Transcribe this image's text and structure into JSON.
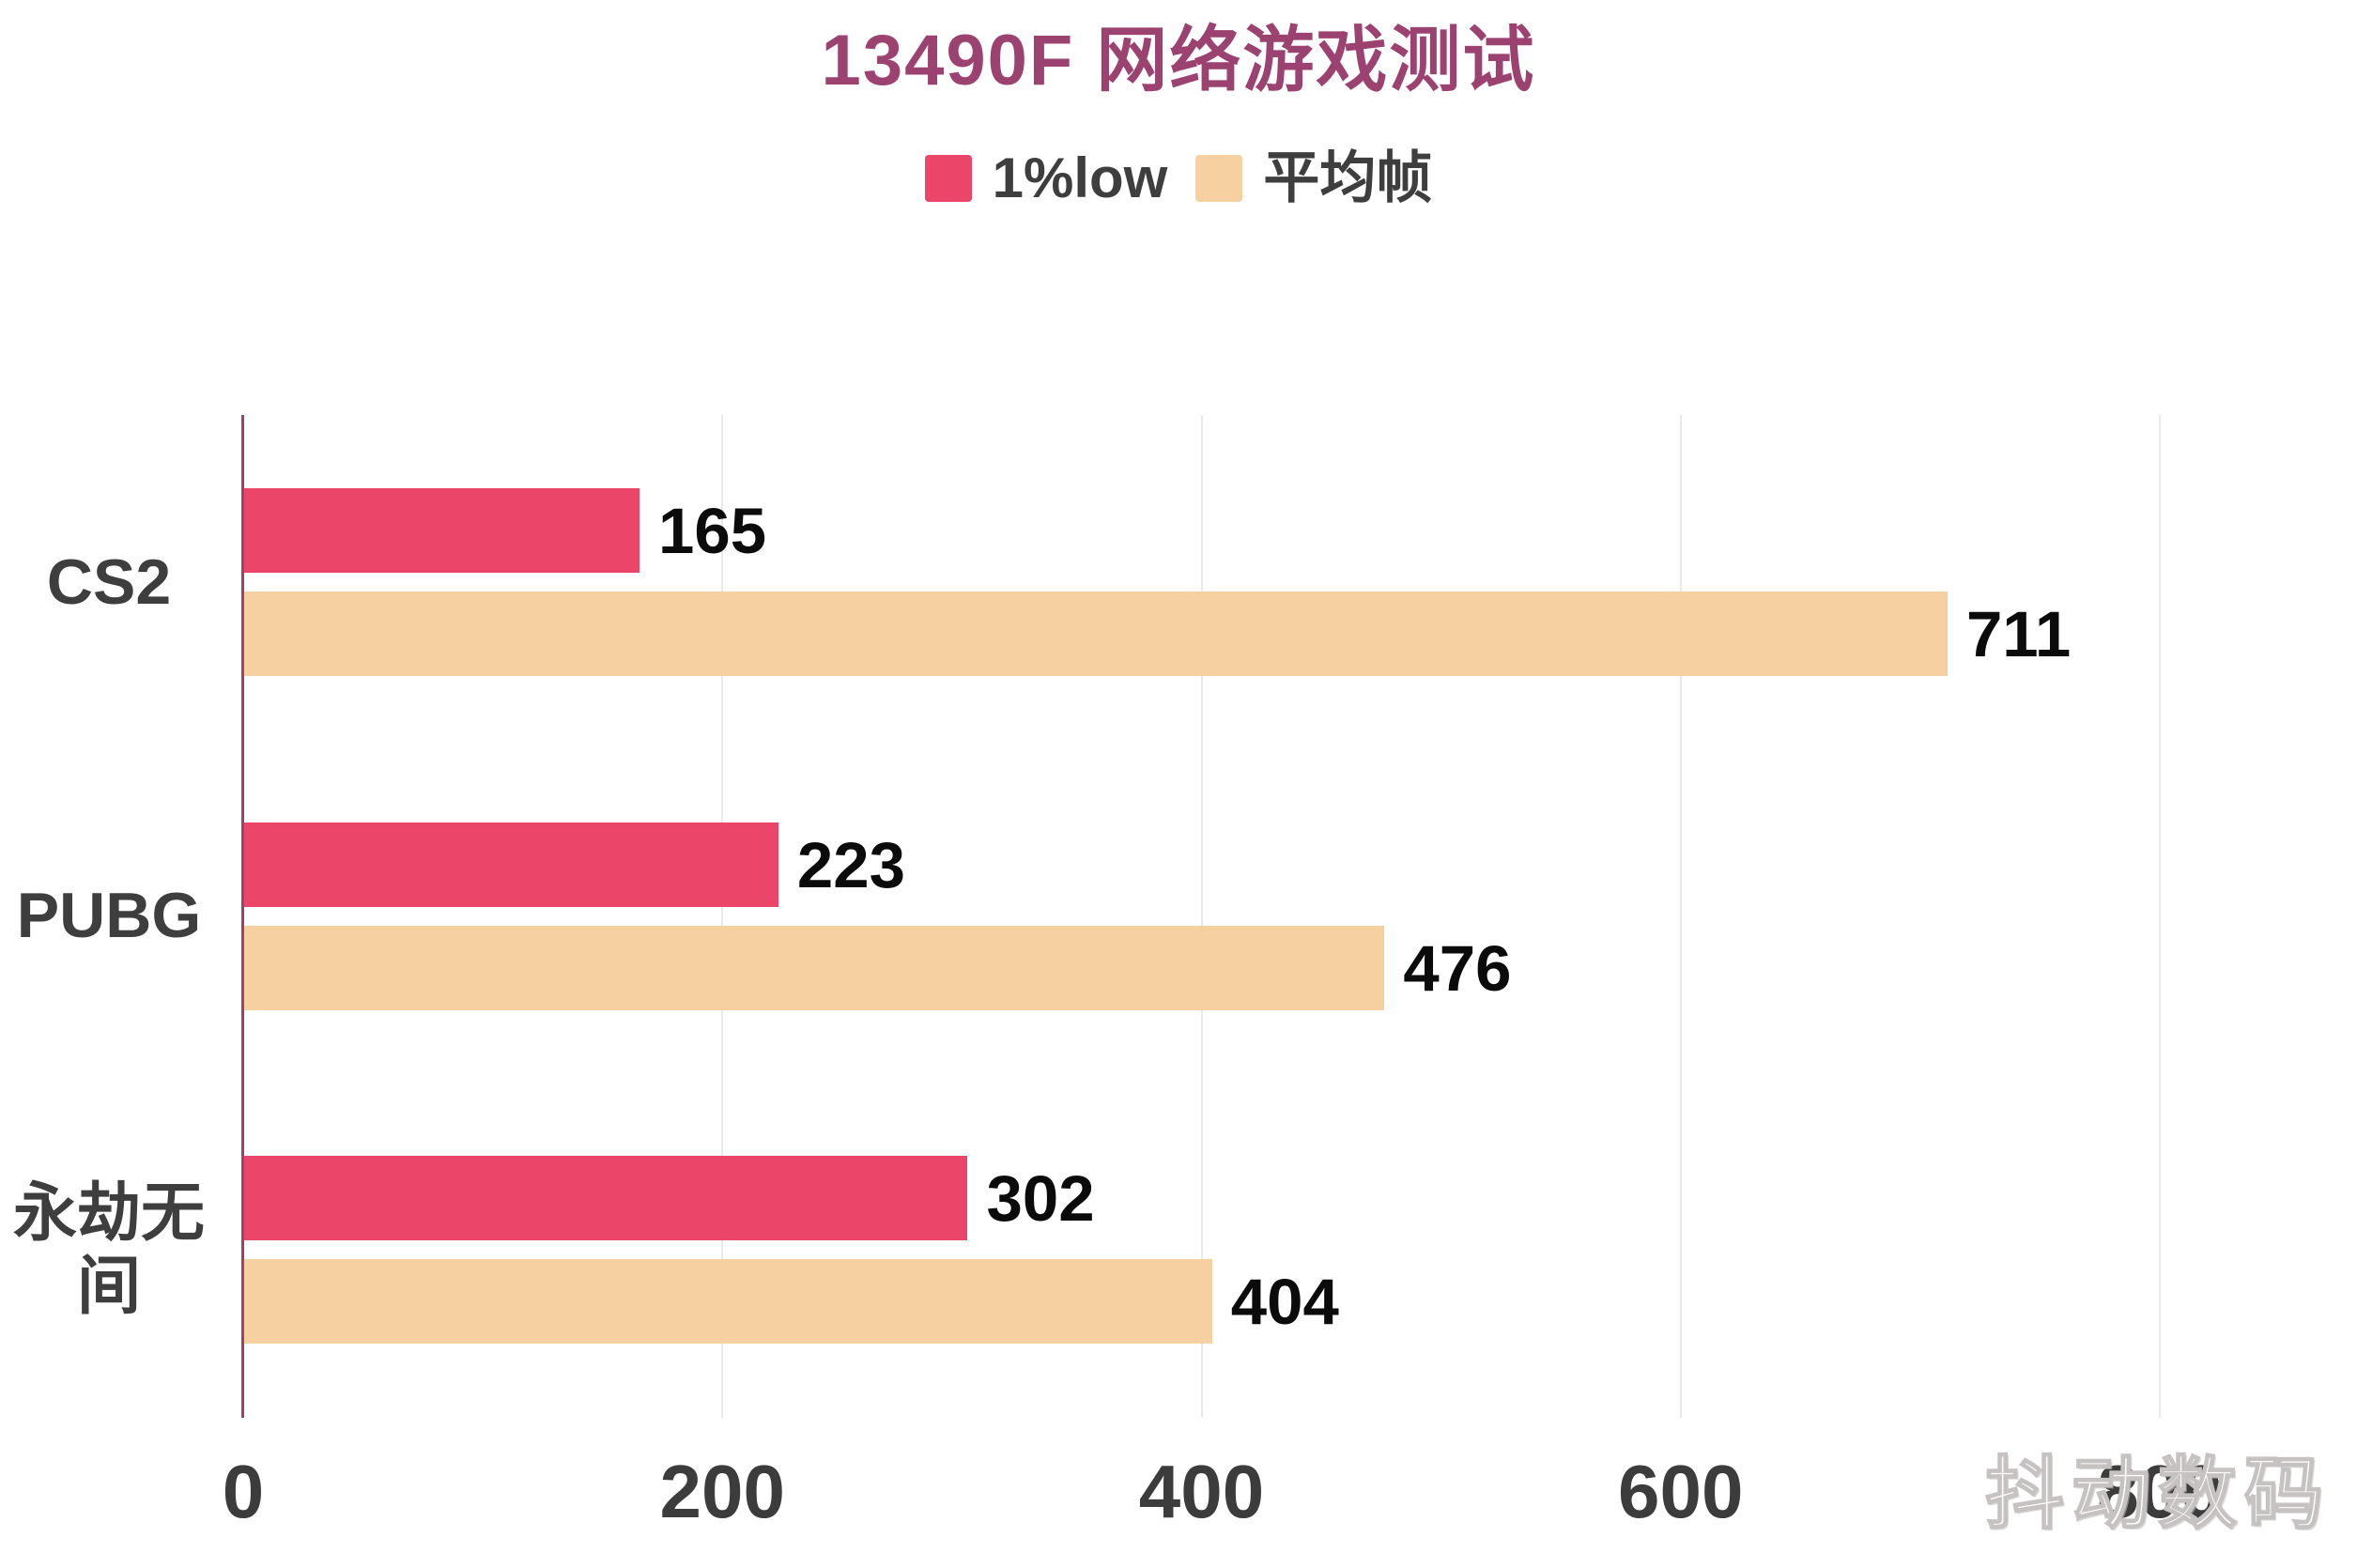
{
  "title": "13490F 网络游戏测试",
  "watermark": "抖动数码",
  "legend": {
    "items": [
      {
        "label": "1%low",
        "color": "#EB4669"
      },
      {
        "label": "平均帧",
        "color": "#F6D0A0"
      }
    ]
  },
  "colors": {
    "title_text": "#9C4270",
    "axis_line": "#9A436E",
    "grid_line": "#E9E9E9",
    "series_low": "#EB4669",
    "series_avg": "#F6D0A0",
    "category_text": "#3E3E3E",
    "tick_text": "#3C3C3C",
    "value_text": "#0B0B0B"
  },
  "chart_data": {
    "type": "bar",
    "orientation": "horizontal",
    "title": "13490F 网络游戏测试",
    "categories": [
      "CS2",
      "PUBG",
      "永劫无间"
    ],
    "series": [
      {
        "name": "1%low",
        "color": "#EB4669",
        "values": [
          165,
          223,
          302
        ]
      },
      {
        "name": "平均帧",
        "color": "#F6D0A0",
        "values": [
          711,
          476,
          404
        ]
      }
    ],
    "xlim": [
      0,
      800
    ],
    "x_ticks": [
      0,
      200,
      400,
      600,
      800
    ],
    "grid": true,
    "legend_position": "top",
    "value_labels": true
  }
}
